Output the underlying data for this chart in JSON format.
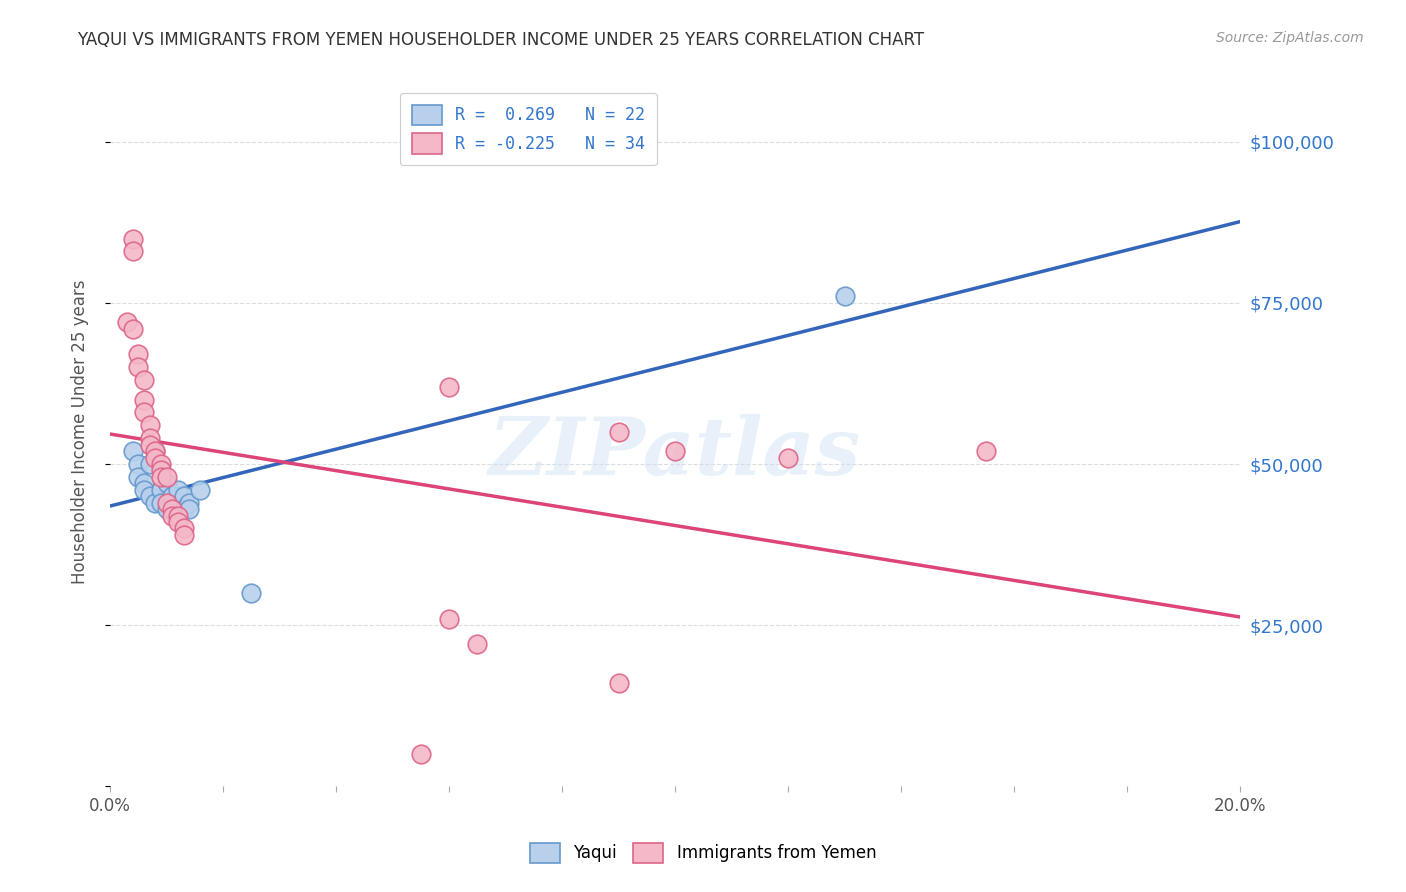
{
  "title": "YAQUI VS IMMIGRANTS FROM YEMEN HOUSEHOLDER INCOME UNDER 25 YEARS CORRELATION CHART",
  "source": "Source: ZipAtlas.com",
  "ylabel": "Householder Income Under 25 years",
  "xlim": [
    0.0,
    0.2
  ],
  "ylim": [
    0,
    110000
  ],
  "yticks": [
    0,
    25000,
    50000,
    75000,
    100000
  ],
  "ytick_labels": [
    "",
    "$25,000",
    "$50,000",
    "$75,000",
    "$100,000"
  ],
  "xticks": [
    0.0,
    0.02,
    0.04,
    0.06,
    0.08,
    0.1,
    0.12,
    0.14,
    0.16,
    0.18,
    0.2
  ],
  "xtick_labels": [
    "0.0%",
    "",
    "",
    "",
    "",
    "",
    "",
    "",
    "",
    "",
    "20.0%"
  ],
  "legend_entries": [
    {
      "label": "R =  0.269   N = 22",
      "color": "#aac4e8"
    },
    {
      "label": "R = -0.225   N = 34",
      "color": "#f4a8b8"
    }
  ],
  "series_blue": {
    "name": "Yaqui",
    "color": "#b8d0ec",
    "border_color": "#6699cc",
    "R": 0.269,
    "N": 22,
    "points": [
      [
        0.004,
        52000
      ],
      [
        0.005,
        50000
      ],
      [
        0.005,
        48000
      ],
      [
        0.006,
        47000
      ],
      [
        0.006,
        46000
      ],
      [
        0.007,
        50000
      ],
      [
        0.007,
        45000
      ],
      [
        0.008,
        52000
      ],
      [
        0.008,
        44000
      ],
      [
        0.009,
        46000
      ],
      [
        0.009,
        44000
      ],
      [
        0.01,
        47000
      ],
      [
        0.01,
        43000
      ],
      [
        0.011,
        45000
      ],
      [
        0.012,
        46000
      ],
      [
        0.013,
        45000
      ],
      [
        0.013,
        43000
      ],
      [
        0.014,
        44000
      ],
      [
        0.014,
        43000
      ],
      [
        0.016,
        46000
      ],
      [
        0.025,
        30000
      ],
      [
        0.13,
        76000
      ]
    ]
  },
  "series_pink": {
    "name": "Immigrants from Yemen",
    "color": "#f4b8c8",
    "border_color": "#dd6688",
    "R": -0.225,
    "N": 34,
    "points": [
      [
        0.003,
        72000
      ],
      [
        0.004,
        85000
      ],
      [
        0.004,
        83000
      ],
      [
        0.004,
        71000
      ],
      [
        0.005,
        67000
      ],
      [
        0.005,
        65000
      ],
      [
        0.006,
        63000
      ],
      [
        0.006,
        60000
      ],
      [
        0.006,
        58000
      ],
      [
        0.007,
        56000
      ],
      [
        0.007,
        54000
      ],
      [
        0.007,
        53000
      ],
      [
        0.008,
        52000
      ],
      [
        0.008,
        51000
      ],
      [
        0.009,
        50000
      ],
      [
        0.009,
        49000
      ],
      [
        0.009,
        48000
      ],
      [
        0.01,
        48000
      ],
      [
        0.01,
        44000
      ],
      [
        0.011,
        43000
      ],
      [
        0.011,
        42000
      ],
      [
        0.012,
        42000
      ],
      [
        0.012,
        41000
      ],
      [
        0.013,
        40000
      ],
      [
        0.013,
        39000
      ],
      [
        0.06,
        62000
      ],
      [
        0.09,
        55000
      ],
      [
        0.1,
        52000
      ],
      [
        0.12,
        51000
      ],
      [
        0.155,
        52000
      ],
      [
        0.06,
        26000
      ],
      [
        0.09,
        16000
      ],
      [
        0.065,
        22000
      ],
      [
        0.055,
        5000
      ]
    ]
  },
  "background_color": "#ffffff",
  "grid_color": "#dddddd",
  "watermark": "ZIPatlas",
  "title_color": "#333333"
}
